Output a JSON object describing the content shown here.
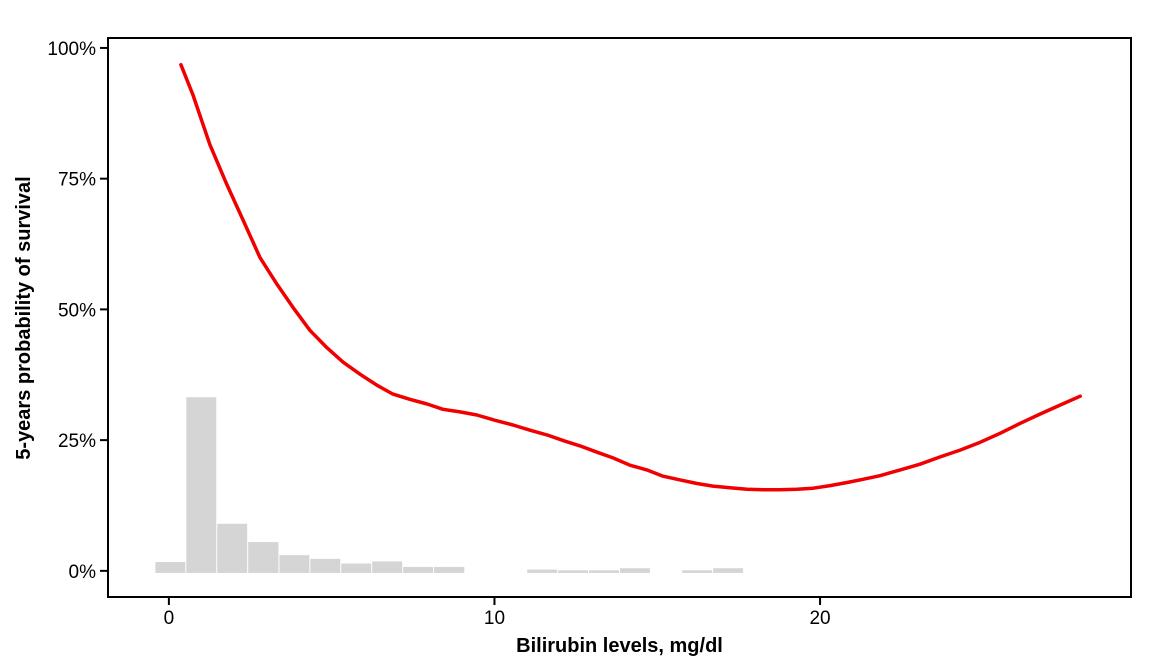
{
  "chart_data": {
    "type": "line",
    "title": "",
    "xlabel": "Bilirubin levels, mg/dl",
    "ylabel": "5-years probability of survival",
    "xlim": [
      -1.87,
      29.55
    ],
    "ylim": [
      -5,
      101.9
    ],
    "grid": false,
    "legend_position": "none",
    "panel_border_color": "#000000",
    "background_color": "#ffffff",
    "axis_text_color": "#000000",
    "x_ticks": [
      {
        "value": 0,
        "label": "0"
      },
      {
        "value": 10,
        "label": "10"
      },
      {
        "value": 20,
        "label": "20"
      }
    ],
    "y_ticks": [
      {
        "value": 0,
        "label": "0%"
      },
      {
        "value": 25,
        "label": "25%"
      },
      {
        "value": 50,
        "label": "50%"
      },
      {
        "value": 75,
        "label": "75%"
      },
      {
        "value": 100,
        "label": "100%"
      }
    ],
    "series": [
      {
        "name": "predicted-5yr-survival",
        "type": "line",
        "color": "#F00000",
        "stroke_width": 3.5,
        "points": [
          [
            0.37,
            96.8
          ],
          [
            0.74,
            91.0
          ],
          [
            1.26,
            81.5
          ],
          [
            1.78,
            73.9
          ],
          [
            2.27,
            67.2
          ],
          [
            2.8,
            59.9
          ],
          [
            3.32,
            54.8
          ],
          [
            3.81,
            50.4
          ],
          [
            4.33,
            46.0
          ],
          [
            4.85,
            42.7
          ],
          [
            5.35,
            39.9
          ],
          [
            5.87,
            37.6
          ],
          [
            6.39,
            35.5
          ],
          [
            6.88,
            33.8
          ],
          [
            7.4,
            32.8
          ],
          [
            7.93,
            31.9
          ],
          [
            8.42,
            30.9
          ],
          [
            8.94,
            30.4
          ],
          [
            9.46,
            29.8
          ],
          [
            10.02,
            28.8
          ],
          [
            10.57,
            27.9
          ],
          [
            11.09,
            26.9
          ],
          [
            11.61,
            26.0
          ],
          [
            12.17,
            24.8
          ],
          [
            12.63,
            23.9
          ],
          [
            13.15,
            22.7
          ],
          [
            13.64,
            21.6
          ],
          [
            14.16,
            20.2
          ],
          [
            14.68,
            19.3
          ],
          [
            15.18,
            18.1
          ],
          [
            15.7,
            17.4
          ],
          [
            16.22,
            16.7
          ],
          [
            16.71,
            16.2
          ],
          [
            17.23,
            15.9
          ],
          [
            17.76,
            15.6
          ],
          [
            18.25,
            15.5
          ],
          [
            18.77,
            15.5
          ],
          [
            19.29,
            15.6
          ],
          [
            19.79,
            15.8
          ],
          [
            20.31,
            16.3
          ],
          [
            20.83,
            16.9
          ],
          [
            21.32,
            17.5
          ],
          [
            21.84,
            18.2
          ],
          [
            22.46,
            19.3
          ],
          [
            23.07,
            20.4
          ],
          [
            23.69,
            21.8
          ],
          [
            24.3,
            23.1
          ],
          [
            24.92,
            24.6
          ],
          [
            25.53,
            26.3
          ],
          [
            26.14,
            28.2
          ],
          [
            26.76,
            30.0
          ],
          [
            27.37,
            31.7
          ],
          [
            27.99,
            33.4
          ]
        ]
      },
      {
        "name": "bilirubin-histogram",
        "type": "bar",
        "color": "#D5D5D5",
        "baseline": -0.4,
        "bars": [
          {
            "x0": -0.43,
            "x1": 0.52,
            "height": 2.1
          },
          {
            "x0": 0.52,
            "x1": 1.47,
            "height": 33.6
          },
          {
            "x0": 1.47,
            "x1": 2.42,
            "height": 9.4
          },
          {
            "x0": 2.42,
            "x1": 3.38,
            "height": 5.9
          },
          {
            "x0": 3.38,
            "x1": 4.33,
            "height": 3.4
          },
          {
            "x0": 4.33,
            "x1": 5.28,
            "height": 2.7
          },
          {
            "x0": 5.28,
            "x1": 6.23,
            "height": 1.8
          },
          {
            "x0": 6.23,
            "x1": 7.18,
            "height": 2.2
          },
          {
            "x0": 7.18,
            "x1": 8.13,
            "height": 1.15
          },
          {
            "x0": 8.13,
            "x1": 9.09,
            "height": 1.15
          },
          {
            "x0": 10.99,
            "x1": 11.94,
            "height": 0.65
          },
          {
            "x0": 11.94,
            "x1": 12.89,
            "height": 0.5
          },
          {
            "x0": 12.89,
            "x1": 13.84,
            "height": 0.5
          },
          {
            "x0": 13.84,
            "x1": 14.79,
            "height": 0.9
          },
          {
            "x0": 15.75,
            "x1": 16.7,
            "height": 0.5
          },
          {
            "x0": 16.7,
            "x1": 17.65,
            "height": 0.9
          }
        ]
      }
    ]
  }
}
